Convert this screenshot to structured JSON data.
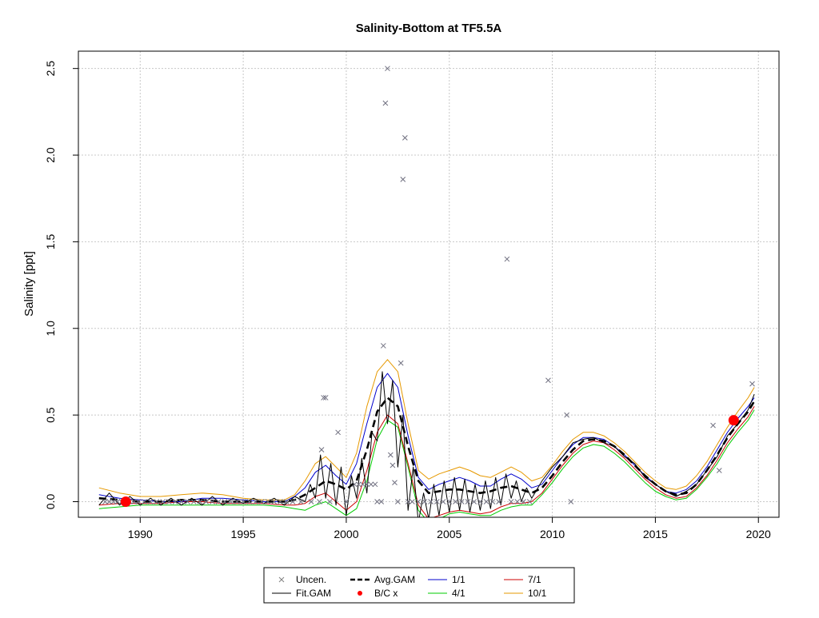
{
  "chart_data": {
    "type": "line",
    "title": "Salinity-Bottom at TF5.5A",
    "xlabel": "",
    "ylabel": "Salinity [ppt]",
    "xlim": [
      1987.0,
      2021.0
    ],
    "ylim": [
      -0.09,
      2.6
    ],
    "x_ticks": [
      1990,
      1995,
      2000,
      2005,
      2010,
      2015,
      2020
    ],
    "y_ticks": [
      0.0,
      0.5,
      1.0,
      1.5,
      2.0,
      2.5
    ],
    "x_tick_labels": [
      "1990",
      "1995",
      "2000",
      "2005",
      "2010",
      "2015",
      "2020"
    ],
    "y_tick_labels": [
      "0.0",
      "0.5",
      "1.0",
      "1.5",
      "2.0",
      "2.5"
    ],
    "grid": true,
    "legend_position": "bottom",
    "legend": [
      {
        "label": "Uncen.",
        "kind": "x-marker",
        "color": "#808080"
      },
      {
        "label": "Avg.GAM",
        "kind": "dashed",
        "color": "#000000"
      },
      {
        "label": "1/1",
        "kind": "line",
        "color": "#0000cc"
      },
      {
        "label": "7/1",
        "kind": "line",
        "color": "#cc0000"
      },
      {
        "label": "Fit.GAM",
        "kind": "line",
        "color": "#000000"
      },
      {
        "label": "B/C x",
        "kind": "dot",
        "color": "#ff0000"
      },
      {
        "label": "4/1",
        "kind": "line",
        "color": "#00cc00"
      },
      {
        "label": "10/1",
        "kind": "line",
        "color": "#e69900"
      }
    ],
    "observations": [
      {
        "x": 1988.3,
        "y": 0.0
      },
      {
        "x": 1988.5,
        "y": 0.0
      },
      {
        "x": 1988.7,
        "y": 0.0
      },
      {
        "x": 1988.9,
        "y": 0.0
      },
      {
        "x": 1989.1,
        "y": 0.0
      },
      {
        "x": 1989.3,
        "y": 0.0
      },
      {
        "x": 1989.5,
        "y": 0.0
      },
      {
        "x": 1989.7,
        "y": 0.0
      },
      {
        "x": 1989.9,
        "y": 0.0
      },
      {
        "x": 1990.2,
        "y": 0.0
      },
      {
        "x": 1990.5,
        "y": 0.0
      },
      {
        "x": 1990.8,
        "y": 0.0
      },
      {
        "x": 1991.1,
        "y": 0.0
      },
      {
        "x": 1991.4,
        "y": 0.0
      },
      {
        "x": 1991.7,
        "y": 0.0
      },
      {
        "x": 1992.0,
        "y": 0.0
      },
      {
        "x": 1992.3,
        "y": 0.0
      },
      {
        "x": 1992.6,
        "y": 0.0
      },
      {
        "x": 1992.9,
        "y": 0.0
      },
      {
        "x": 1993.2,
        "y": 0.0
      },
      {
        "x": 1993.5,
        "y": 0.0
      },
      {
        "x": 1993.8,
        "y": 0.0
      },
      {
        "x": 1994.1,
        "y": 0.0
      },
      {
        "x": 1994.4,
        "y": 0.0
      },
      {
        "x": 1994.7,
        "y": 0.0
      },
      {
        "x": 1995.0,
        "y": 0.0
      },
      {
        "x": 1995.3,
        "y": 0.0
      },
      {
        "x": 1995.6,
        "y": 0.0
      },
      {
        "x": 1995.9,
        "y": 0.0
      },
      {
        "x": 1996.2,
        "y": 0.0
      },
      {
        "x": 1996.5,
        "y": 0.0
      },
      {
        "x": 1996.8,
        "y": 0.0
      },
      {
        "x": 1997.1,
        "y": 0.0
      },
      {
        "x": 1997.4,
        "y": 0.0
      },
      {
        "x": 1997.8,
        "y": 0.0
      },
      {
        "x": 1998.3,
        "y": 0.0
      },
      {
        "x": 1998.7,
        "y": 0.0
      },
      {
        "x": 1998.8,
        "y": 0.3
      },
      {
        "x": 1998.9,
        "y": 0.6
      },
      {
        "x": 1999.0,
        "y": 0.6
      },
      {
        "x": 1999.2,
        "y": 0.0
      },
      {
        "x": 1999.6,
        "y": 0.4
      },
      {
        "x": 2000.0,
        "y": 0.0
      },
      {
        "x": 2000.4,
        "y": 0.1
      },
      {
        "x": 2000.6,
        "y": 0.1
      },
      {
        "x": 2000.8,
        "y": 0.1
      },
      {
        "x": 2001.0,
        "y": 0.1
      },
      {
        "x": 2001.2,
        "y": 0.1
      },
      {
        "x": 2001.4,
        "y": 0.1
      },
      {
        "x": 2001.5,
        "y": 0.0
      },
      {
        "x": 2001.7,
        "y": 0.0
      },
      {
        "x": 2001.8,
        "y": 0.9
      },
      {
        "x": 2001.9,
        "y": 2.3
      },
      {
        "x": 2002.0,
        "y": 2.5
      },
      {
        "x": 2002.15,
        "y": 0.27
      },
      {
        "x": 2002.25,
        "y": 0.21
      },
      {
        "x": 2002.35,
        "y": 0.11
      },
      {
        "x": 2002.5,
        "y": 0.0
      },
      {
        "x": 2002.65,
        "y": 0.8
      },
      {
        "x": 2002.75,
        "y": 1.86
      },
      {
        "x": 2002.85,
        "y": 2.1
      },
      {
        "x": 2003.0,
        "y": 0.0
      },
      {
        "x": 2003.2,
        "y": 0.0
      },
      {
        "x": 2003.5,
        "y": 0.0
      },
      {
        "x": 2003.8,
        "y": 0.0
      },
      {
        "x": 2004.1,
        "y": 0.0
      },
      {
        "x": 2004.4,
        "y": 0.0
      },
      {
        "x": 2004.7,
        "y": 0.0
      },
      {
        "x": 2005.0,
        "y": 0.0
      },
      {
        "x": 2005.3,
        "y": 0.0
      },
      {
        "x": 2005.6,
        "y": 0.0
      },
      {
        "x": 2005.9,
        "y": 0.0
      },
      {
        "x": 2006.2,
        "y": 0.0
      },
      {
        "x": 2006.5,
        "y": 0.0
      },
      {
        "x": 2006.8,
        "y": 0.0
      },
      {
        "x": 2007.1,
        "y": 0.0
      },
      {
        "x": 2007.4,
        "y": 0.0
      },
      {
        "x": 2007.8,
        "y": 1.4
      },
      {
        "x": 2008.0,
        "y": 0.0
      },
      {
        "x": 2008.3,
        "y": 0.0
      },
      {
        "x": 2008.6,
        "y": 0.0
      },
      {
        "x": 2008.9,
        "y": 0.0
      },
      {
        "x": 2009.8,
        "y": 0.7
      },
      {
        "x": 2010.7,
        "y": 0.5
      },
      {
        "x": 2010.9,
        "y": 0.0
      },
      {
        "x": 2017.8,
        "y": 0.44
      },
      {
        "x": 2018.1,
        "y": 0.18
      },
      {
        "x": 2019.7,
        "y": 0.68
      }
    ],
    "bc_points": [
      {
        "x": 1989.3,
        "y": 0.0
      },
      {
        "x": 2018.8,
        "y": 0.47
      }
    ],
    "series": [
      {
        "name": "Avg.GAM",
        "color": "#000000",
        "style": "dashed",
        "x": [
          1988.0,
          1989.0,
          1990.0,
          1991.0,
          1992.0,
          1993.0,
          1994.0,
          1995.0,
          1996.0,
          1997.0,
          1997.5,
          1998.0,
          1998.5,
          1999.0,
          1999.5,
          2000.0,
          2000.5,
          2001.0,
          2001.5,
          2002.0,
          2002.5,
          2003.0,
          2003.5,
          2004.0,
          2004.5,
          2005.0,
          2005.5,
          2006.0,
          2006.5,
          2007.0,
          2007.5,
          2008.0,
          2008.5,
          2009.0,
          2009.5,
          2010.0,
          2010.5,
          2011.0,
          2011.5,
          2012.0,
          2012.5,
          2013.0,
          2013.5,
          2014.0,
          2014.5,
          2015.0,
          2015.5,
          2016.0,
          2016.5,
          2017.0,
          2017.5,
          2018.0,
          2018.5,
          2019.0,
          2019.5,
          2019.8
        ],
        "y": [
          0.02,
          0.01,
          0.0,
          0.0,
          0.01,
          0.01,
          0.0,
          0.0,
          0.0,
          0.0,
          0.01,
          0.04,
          0.08,
          0.12,
          0.1,
          0.07,
          0.12,
          0.3,
          0.52,
          0.6,
          0.55,
          0.32,
          0.12,
          0.05,
          0.06,
          0.07,
          0.07,
          0.06,
          0.05,
          0.06,
          0.08,
          0.09,
          0.07,
          0.05,
          0.08,
          0.15,
          0.23,
          0.3,
          0.35,
          0.36,
          0.35,
          0.32,
          0.27,
          0.21,
          0.15,
          0.1,
          0.06,
          0.04,
          0.05,
          0.1,
          0.18,
          0.27,
          0.37,
          0.45,
          0.52,
          0.58
        ]
      },
      {
        "name": "Fit.GAM",
        "color": "#000000",
        "style": "solid",
        "x": [
          1988.0,
          1988.5,
          1989.0,
          1989.5,
          1990.0,
          1990.5,
          1991.0,
          1991.5,
          1992.0,
          1992.5,
          1993.0,
          1993.5,
          1994.0,
          1994.5,
          1995.0,
          1995.5,
          1996.0,
          1996.5,
          1997.0,
          1997.5,
          1998.0,
          1998.25,
          1998.5,
          1998.75,
          1999.0,
          1999.25,
          1999.5,
          1999.75,
          2000.0,
          2000.25,
          2000.5,
          2000.75,
          2001.0,
          2001.25,
          2001.5,
          2001.75,
          2002.0,
          2002.25,
          2002.5,
          2002.75,
          2003.0,
          2003.25,
          2003.5,
          2003.75,
          2004.0,
          2004.25,
          2004.5,
          2004.75,
          2005.0,
          2005.25,
          2005.5,
          2005.75,
          2006.0,
          2006.25,
          2006.5,
          2006.75,
          2007.0,
          2007.25,
          2007.5,
          2007.75,
          2008.0,
          2008.25,
          2008.5,
          2008.75,
          2009.0,
          2009.5,
          2010.0,
          2010.5,
          2011.0,
          2011.5,
          2012.0,
          2012.5,
          2013.0,
          2013.5,
          2014.0,
          2014.5,
          2015.0,
          2015.5,
          2016.0,
          2016.5,
          2017.0,
          2017.5,
          2018.0,
          2018.5,
          2019.0,
          2019.5,
          2019.8
        ],
        "y": [
          -0.02,
          0.05,
          -0.02,
          0.03,
          -0.02,
          0.02,
          -0.02,
          0.02,
          -0.02,
          0.02,
          -0.02,
          0.03,
          -0.02,
          0.02,
          -0.01,
          0.02,
          -0.01,
          0.02,
          -0.02,
          0.03,
          0.0,
          0.1,
          0.02,
          0.27,
          0.02,
          0.22,
          -0.02,
          0.2,
          -0.08,
          0.15,
          0.02,
          0.25,
          0.05,
          0.4,
          0.35,
          0.75,
          0.45,
          0.7,
          0.2,
          0.5,
          -0.05,
          0.2,
          -0.12,
          0.05,
          -0.1,
          0.1,
          -0.08,
          0.12,
          -0.06,
          0.14,
          -0.05,
          0.13,
          -0.06,
          0.1,
          -0.05,
          0.12,
          -0.04,
          0.14,
          -0.02,
          0.16,
          0.02,
          0.12,
          0.0,
          0.08,
          0.02,
          0.12,
          0.2,
          0.26,
          0.34,
          0.36,
          0.37,
          0.34,
          0.32,
          0.26,
          0.22,
          0.14,
          0.1,
          0.06,
          0.03,
          0.06,
          0.1,
          0.18,
          0.26,
          0.38,
          0.45,
          0.53,
          0.62
        ]
      },
      {
        "name": "1/1",
        "color": "#0000cc",
        "style": "solid",
        "x": [
          1988.0,
          1989.0,
          1990.0,
          1991.0,
          1992.0,
          1993.0,
          1994.0,
          1995.0,
          1996.0,
          1997.0,
          1997.5,
          1998.0,
          1998.5,
          1999.0,
          1999.5,
          2000.0,
          2000.5,
          2001.0,
          2001.5,
          2002.0,
          2002.5,
          2003.0,
          2003.5,
          2004.0,
          2004.5,
          2005.0,
          2005.5,
          2006.0,
          2006.5,
          2007.0,
          2007.5,
          2008.0,
          2008.5,
          2009.0,
          2009.5,
          2010.0,
          2010.5,
          2011.0,
          2011.5,
          2012.0,
          2012.5,
          2013.0,
          2013.5,
          2014.0,
          2014.5,
          2015.0,
          2015.5,
          2016.0,
          2016.5,
          2017.0,
          2017.5,
          2018.0,
          2018.5,
          2019.0,
          2019.5,
          2019.8
        ],
        "y": [
          0.04,
          0.02,
          0.01,
          0.0,
          0.0,
          0.02,
          0.02,
          0.01,
          0.0,
          0.0,
          0.03,
          0.08,
          0.17,
          0.21,
          0.15,
          0.1,
          0.22,
          0.45,
          0.66,
          0.74,
          0.66,
          0.38,
          0.14,
          0.07,
          0.1,
          0.12,
          0.14,
          0.12,
          0.09,
          0.09,
          0.13,
          0.16,
          0.13,
          0.08,
          0.1,
          0.18,
          0.26,
          0.33,
          0.37,
          0.37,
          0.36,
          0.32,
          0.27,
          0.21,
          0.15,
          0.1,
          0.06,
          0.05,
          0.07,
          0.12,
          0.2,
          0.3,
          0.4,
          0.48,
          0.55,
          0.6
        ]
      },
      {
        "name": "4/1",
        "color": "#00cc00",
        "style": "solid",
        "x": [
          1988.0,
          1989.0,
          1990.0,
          1991.0,
          1992.0,
          1993.0,
          1994.0,
          1995.0,
          1996.0,
          1997.0,
          1997.5,
          1998.0,
          1998.5,
          1999.0,
          1999.5,
          2000.0,
          2000.5,
          2001.0,
          2001.5,
          2002.0,
          2002.5,
          2003.0,
          2003.5,
          2004.0,
          2004.5,
          2005.0,
          2005.5,
          2006.0,
          2006.5,
          2007.0,
          2007.5,
          2008.0,
          2008.5,
          2009.0,
          2009.5,
          2010.0,
          2010.5,
          2011.0,
          2011.5,
          2012.0,
          2012.5,
          2013.0,
          2013.5,
          2014.0,
          2014.5,
          2015.0,
          2015.5,
          2016.0,
          2016.5,
          2017.0,
          2017.5,
          2018.0,
          2018.5,
          2019.0,
          2019.5,
          2019.8
        ],
        "y": [
          -0.04,
          -0.03,
          -0.02,
          -0.02,
          -0.02,
          -0.02,
          -0.02,
          -0.02,
          -0.02,
          -0.03,
          -0.04,
          -0.05,
          -0.02,
          0.0,
          -0.04,
          -0.08,
          -0.04,
          0.12,
          0.36,
          0.47,
          0.43,
          0.2,
          -0.05,
          -0.12,
          -0.1,
          -0.07,
          -0.06,
          -0.07,
          -0.08,
          -0.08,
          -0.05,
          -0.03,
          -0.02,
          -0.02,
          0.04,
          0.11,
          0.19,
          0.26,
          0.31,
          0.33,
          0.32,
          0.28,
          0.23,
          0.17,
          0.11,
          0.06,
          0.03,
          0.01,
          0.02,
          0.07,
          0.14,
          0.22,
          0.32,
          0.4,
          0.47,
          0.53
        ]
      },
      {
        "name": "7/1",
        "color": "#cc0000",
        "style": "solid",
        "x": [
          1988.0,
          1989.0,
          1990.0,
          1991.0,
          1992.0,
          1993.0,
          1994.0,
          1995.0,
          1996.0,
          1997.0,
          1997.5,
          1998.0,
          1998.5,
          1999.0,
          1999.5,
          2000.0,
          2000.5,
          2001.0,
          2001.5,
          2002.0,
          2002.5,
          2003.0,
          2003.5,
          2004.0,
          2004.5,
          2005.0,
          2005.5,
          2006.0,
          2006.5,
          2007.0,
          2007.5,
          2008.0,
          2008.5,
          2009.0,
          2009.5,
          2010.0,
          2010.5,
          2011.0,
          2011.5,
          2012.0,
          2012.5,
          2013.0,
          2013.5,
          2014.0,
          2014.5,
          2015.0,
          2015.5,
          2016.0,
          2016.5,
          2017.0,
          2017.5,
          2018.0,
          2018.5,
          2019.0,
          2019.5,
          2019.8
        ],
        "y": [
          -0.02,
          -0.01,
          -0.01,
          -0.01,
          0.0,
          0.0,
          -0.01,
          -0.01,
          -0.01,
          -0.02,
          -0.02,
          -0.01,
          0.03,
          0.05,
          0.0,
          -0.05,
          0.0,
          0.18,
          0.4,
          0.5,
          0.45,
          0.22,
          -0.02,
          -0.1,
          -0.08,
          -0.06,
          -0.05,
          -0.06,
          -0.07,
          -0.06,
          -0.03,
          -0.01,
          -0.01,
          0.0,
          0.05,
          0.13,
          0.21,
          0.28,
          0.33,
          0.35,
          0.34,
          0.3,
          0.25,
          0.19,
          0.13,
          0.08,
          0.04,
          0.02,
          0.03,
          0.08,
          0.15,
          0.24,
          0.34,
          0.42,
          0.49,
          0.55
        ]
      },
      {
        "name": "10/1",
        "color": "#e69900",
        "style": "solid",
        "x": [
          1988.0,
          1989.0,
          1990.0,
          1991.0,
          1992.0,
          1993.0,
          1994.0,
          1995.0,
          1996.0,
          1997.0,
          1997.5,
          1998.0,
          1998.5,
          1999.0,
          1999.5,
          2000.0,
          2000.5,
          2001.0,
          2001.5,
          2002.0,
          2002.5,
          2003.0,
          2003.5,
          2004.0,
          2004.5,
          2005.0,
          2005.5,
          2006.0,
          2006.5,
          2007.0,
          2007.5,
          2008.0,
          2008.5,
          2009.0,
          2009.5,
          2010.0,
          2010.5,
          2011.0,
          2011.5,
          2012.0,
          2012.5,
          2013.0,
          2013.5,
          2014.0,
          2014.5,
          2015.0,
          2015.5,
          2016.0,
          2016.5,
          2017.0,
          2017.5,
          2018.0,
          2018.5,
          2019.0,
          2019.5,
          2019.8
        ],
        "y": [
          0.08,
          0.05,
          0.03,
          0.03,
          0.04,
          0.05,
          0.04,
          0.02,
          0.01,
          0.01,
          0.04,
          0.12,
          0.22,
          0.26,
          0.2,
          0.14,
          0.28,
          0.55,
          0.75,
          0.82,
          0.75,
          0.45,
          0.18,
          0.13,
          0.16,
          0.18,
          0.2,
          0.18,
          0.15,
          0.14,
          0.17,
          0.2,
          0.17,
          0.12,
          0.14,
          0.21,
          0.29,
          0.36,
          0.4,
          0.4,
          0.38,
          0.34,
          0.29,
          0.23,
          0.17,
          0.12,
          0.08,
          0.07,
          0.09,
          0.15,
          0.23,
          0.33,
          0.43,
          0.52,
          0.6,
          0.66
        ]
      }
    ]
  }
}
